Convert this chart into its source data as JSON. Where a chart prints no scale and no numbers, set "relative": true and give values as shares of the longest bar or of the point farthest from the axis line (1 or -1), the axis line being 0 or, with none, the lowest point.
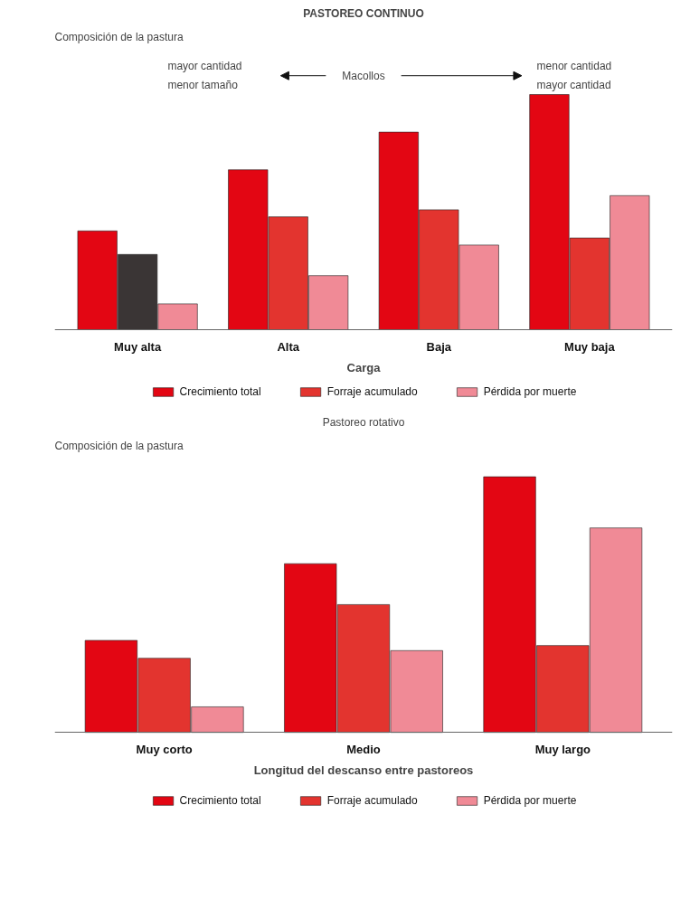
{
  "chart_data": [
    {
      "type": "bar",
      "title": "PASTOREO CONTINUO",
      "ylabel": "Composición de la pastura",
      "xlabel": "Carga",
      "relative": true,
      "legend": "bottom",
      "grid": false,
      "categories": [
        "Muy alta",
        "Alta",
        "Baja",
        "Muy baja"
      ],
      "series": [
        {
          "name": "Crecimiento total",
          "color": "#e30613",
          "values": [
            0.42,
            0.68,
            0.84,
            1
          ]
        },
        {
          "name": "Forraje acumulado",
          "color": "#e3342f",
          "colors": [
            "#3a3535",
            "#e3342f",
            "#e3342f",
            "#e3342f"
          ],
          "values": [
            0.32,
            0.48,
            0.51,
            0.39
          ]
        },
        {
          "name": "Pérdida por muerte",
          "color": "#f08a96",
          "values": [
            0.11,
            0.23,
            0.36,
            0.57
          ]
        }
      ],
      "annotations": [
        "mayor cantidad",
        "menor tamaño",
        "Macollos",
        "menor cantidad",
        "mayor cantidad"
      ]
    },
    {
      "type": "bar",
      "title": "Pastoreo rotativo",
      "ylabel": "Composición de la pastura",
      "xlabel": "Longitud del descanso entre pastoreos",
      "relative": true,
      "legend": "bottom",
      "grid": false,
      "categories": [
        "Muy corto",
        "Medio",
        "Muy largo"
      ],
      "series": [
        {
          "name": "Crecimiento total",
          "color": "#e30613",
          "values": [
            0.36,
            0.66,
            1
          ]
        },
        {
          "name": "Forraje acumulado",
          "color": "#e3342f",
          "values": [
            0.29,
            0.5,
            0.34
          ]
        },
        {
          "name": "Pérdida por muerte",
          "color": "#f08a96",
          "values": [
            0.1,
            0.32,
            0.8
          ]
        }
      ]
    }
  ]
}
